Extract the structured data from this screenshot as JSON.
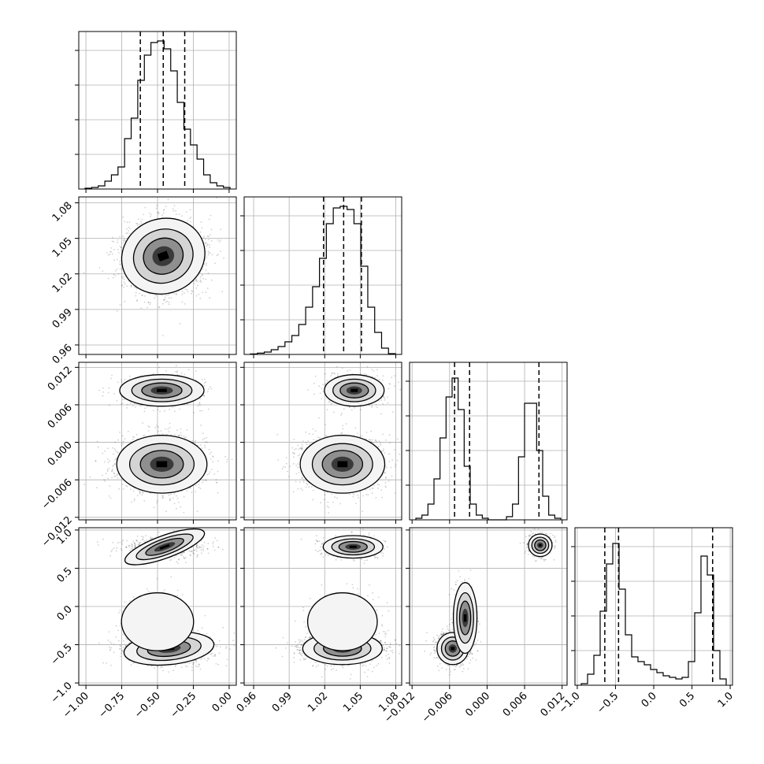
{
  "chart_data": {
    "type": "corner",
    "parameters": [
      {
        "range": [
          -1.05,
          0.05
        ],
        "ticks": [
          "−1.00",
          "−0.75",
          "−0.50",
          "−0.25",
          "0.00"
        ],
        "tick_values": [
          -1.0,
          -0.75,
          -0.5,
          -0.25,
          0.0
        ]
      },
      {
        "range": [
          0.952,
          1.085
        ],
        "ticks": [
          "0.96",
          "0.99",
          "1.02",
          "1.05",
          "1.08"
        ],
        "tick_values": [
          0.96,
          0.99,
          1.02,
          1.05,
          1.08
        ]
      },
      {
        "range": [
          -0.0124,
          0.0128
        ],
        "ticks": [
          "−0.012",
          "−0.006",
          "0.000",
          "0.006",
          "0.012"
        ],
        "tick_values": [
          -0.012,
          -0.006,
          0.0,
          0.006,
          0.012
        ]
      },
      {
        "range": [
          -1.03,
          1.03
        ],
        "ticks": [
          "−1.0",
          "−0.5",
          "0.0",
          "0.5",
          "1.0"
        ],
        "tick_values": [
          -1.0,
          -0.5,
          0.0,
          0.5,
          1.0
        ]
      }
    ],
    "quantiles": [
      [
        -0.62,
        -0.46,
        -0.31
      ],
      [
        1.019,
        1.036,
        1.051
      ],
      [
        -0.0052,
        -0.0028,
        0.0083
      ],
      [
        -0.64,
        -0.46,
        0.77
      ]
    ],
    "histograms": [
      {
        "counts": [
          0.5,
          1,
          2,
          5,
          9,
          14,
          32,
          45,
          69,
          85,
          93,
          94,
          89,
          75,
          55,
          38,
          28,
          19,
          9,
          4,
          2,
          1
        ]
      },
      {
        "counts": [
          0.3,
          0.8,
          1.5,
          3,
          5,
          8,
          12,
          19,
          30,
          43,
          61,
          83,
          93,
          94,
          92,
          83,
          56,
          30,
          14,
          4,
          0.5
        ]
      },
      {
        "counts": [
          1,
          3,
          10,
          26,
          52,
          78,
          90,
          70,
          34,
          10,
          3,
          1,
          0,
          0,
          0,
          2,
          10,
          40,
          74,
          74,
          44,
          15,
          3,
          1
        ]
      },
      {
        "counts": [
          1,
          7,
          19,
          47,
          77,
          90,
          61,
          32,
          18,
          15,
          13,
          10,
          8,
          6,
          5,
          4,
          5,
          15,
          46,
          82,
          70,
          22,
          4
        ]
      }
    ],
    "pairs": [
      {
        "x": 0,
        "y": 1,
        "corr": 0.45,
        "clusters": [
          {
            "weight": 1,
            "cx": -0.46,
            "cy": 1.035,
            "sx": 0.14,
            "sy": 0.015,
            "rot": 0.35
          }
        ]
      },
      {
        "x": 0,
        "y": 2,
        "corr": 0,
        "clusters": [
          {
            "weight": 0.7,
            "cx": -0.47,
            "cy": -0.0035,
            "sx": 0.15,
            "sy": 0.0022,
            "rot": 0
          },
          {
            "weight": 0.3,
            "cx": -0.47,
            "cy": 0.0083,
            "sx": 0.14,
            "sy": 0.0012,
            "rot": 0
          }
        ]
      },
      {
        "x": 1,
        "y": 2,
        "corr": 0,
        "clusters": [
          {
            "weight": 0.7,
            "cx": 1.035,
            "cy": -0.0035,
            "sx": 0.017,
            "sy": 0.0022,
            "rot": 0
          },
          {
            "weight": 0.3,
            "cx": 1.045,
            "cy": 0.0083,
            "sx": 0.012,
            "sy": 0.0012,
            "rot": 0
          }
        ]
      },
      {
        "x": 0,
        "y": 3,
        "corr": 0,
        "clusters": [
          {
            "weight": 0.6,
            "cx": -0.42,
            "cy": -0.55,
            "sx": 0.15,
            "sy": 0.1,
            "rot": 0.1
          },
          {
            "weight": 0.15,
            "cx": -0.5,
            "cy": -0.2,
            "sx": 0.12,
            "sy": 0.18,
            "rot": 0
          },
          {
            "weight": 0.25,
            "cx": -0.45,
            "cy": 0.78,
            "sx": 0.14,
            "sy": 0.07,
            "rot": 0.35
          }
        ]
      },
      {
        "x": 1,
        "y": 3,
        "corr": 0,
        "clusters": [
          {
            "weight": 0.6,
            "cx": 1.035,
            "cy": -0.55,
            "sx": 0.016,
            "sy": 0.1,
            "rot": 0
          },
          {
            "weight": 0.15,
            "cx": 1.035,
            "cy": -0.2,
            "sx": 0.014,
            "sy": 0.18,
            "rot": 0
          },
          {
            "weight": 0.25,
            "cx": 1.044,
            "cy": 0.78,
            "sx": 0.012,
            "sy": 0.07,
            "rot": 0
          }
        ]
      },
      {
        "x": 2,
        "y": 3,
        "corr": 0,
        "clusters": [
          {
            "weight": 0.55,
            "cx": -0.0055,
            "cy": -0.55,
            "sx": 0.0012,
            "sy": 0.1,
            "rot": 0
          },
          {
            "weight": 0.2,
            "cx": -0.0035,
            "cy": -0.15,
            "sx": 0.0009,
            "sy": 0.22,
            "rot": 0
          },
          {
            "weight": 0.25,
            "cx": 0.0085,
            "cy": 0.8,
            "sx": 0.0009,
            "sy": 0.07,
            "rot": 0
          }
        ]
      }
    ]
  }
}
